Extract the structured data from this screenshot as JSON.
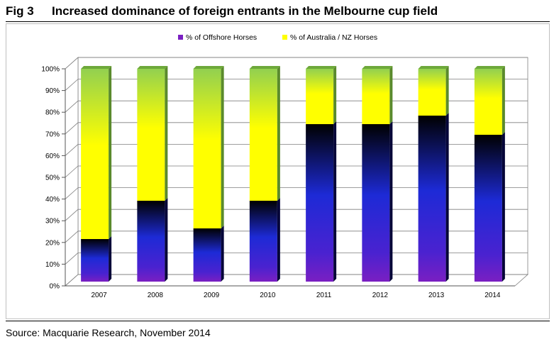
{
  "figure": {
    "number": "Fig 3",
    "title": "Increased dominance of foreign entrants in the Melbourne cup field",
    "source": "Source: Macquarie Research, November 2014"
  },
  "chart_data": {
    "type": "bar",
    "stacked": true,
    "three_d": true,
    "categories": [
      "2007",
      "2008",
      "2009",
      "2010",
      "2011",
      "2012",
      "2013",
      "2014"
    ],
    "series": [
      {
        "name": "% of Offshore Horses",
        "values": [
          20,
          38,
          25,
          38,
          74,
          74,
          78,
          69
        ]
      },
      {
        "name": "% of Australia / NZ Horses",
        "values": [
          80,
          62,
          75,
          62,
          26,
          26,
          22,
          31
        ]
      }
    ],
    "ylim": [
      0,
      100
    ],
    "yticks": [
      "0%",
      "10%",
      "20%",
      "30%",
      "40%",
      "50%",
      "60%",
      "70%",
      "80%",
      "90%",
      "100%"
    ],
    "legend_position": "top",
    "grid": true,
    "colors": {
      "offshore_bottom": "#7a1fc2",
      "offshore_mid": "#1d2ad6",
      "offshore_top": "#000000",
      "aus_bottom": "#ffff00",
      "aus_top": "#92d050",
      "grid": "#7f7f7f"
    }
  }
}
